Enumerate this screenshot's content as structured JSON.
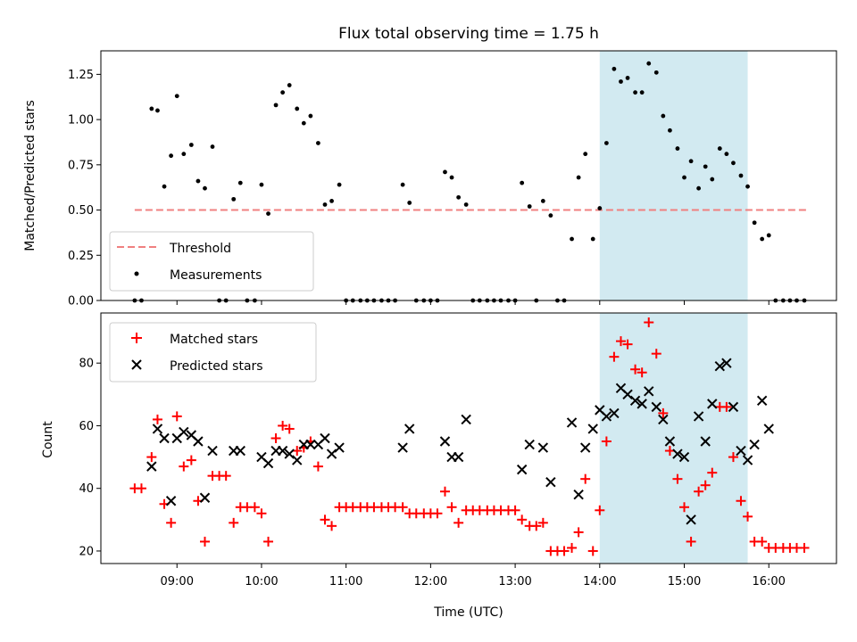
{
  "title": "Flux total observing time = 1.75 h",
  "colors": {
    "highlight": "#add8e6",
    "threshold": "#f08080",
    "measurements": "#000000",
    "matched": "#ff0000",
    "predicted": "#000000"
  },
  "chart_data": [
    {
      "type": "scatter",
      "ylabel": "Matched/Predicted stars",
      "xlim": [
        8.1,
        16.8
      ],
      "ylim": [
        0,
        1.38
      ],
      "yticks": [
        0.0,
        0.25,
        0.5,
        0.75,
        1.0,
        1.25
      ],
      "ytick_labels": [
        "0.00",
        "0.25",
        "0.50",
        "0.75",
        "1.00",
        "1.25"
      ],
      "highlight_span": [
        14.0,
        15.75
      ],
      "legend": {
        "placement": "lower-left",
        "entries": [
          "Threshold",
          "Measurements"
        ]
      },
      "threshold": {
        "name": "Threshold",
        "y": 0.5,
        "x_range": [
          8.5,
          16.45
        ]
      },
      "series": [
        {
          "name": "Measurements",
          "x": [
            8.5,
            8.58,
            8.7,
            8.77,
            8.85,
            8.93,
            9.0,
            9.08,
            9.17,
            9.25,
            9.33,
            9.42,
            9.5,
            9.58,
            9.67,
            9.75,
            9.83,
            9.92,
            10.0,
            10.08,
            10.17,
            10.25,
            10.33,
            10.42,
            10.5,
            10.58,
            10.67,
            10.75,
            10.83,
            10.92,
            11.0,
            11.08,
            11.17,
            11.25,
            11.33,
            11.42,
            11.5,
            11.58,
            11.67,
            11.75,
            11.83,
            11.92,
            12.0,
            12.08,
            12.17,
            12.25,
            12.33,
            12.42,
            12.5,
            12.58,
            12.67,
            12.75,
            12.83,
            12.92,
            13.0,
            13.08,
            13.17,
            13.25,
            13.33,
            13.42,
            13.5,
            13.58,
            13.67,
            13.75,
            13.83,
            13.92,
            14.0,
            14.08,
            14.17,
            14.25,
            14.33,
            14.42,
            14.5,
            14.58,
            14.67,
            14.75,
            14.83,
            14.92,
            15.0,
            15.08,
            15.17,
            15.25,
            15.33,
            15.42,
            15.5,
            15.58,
            15.67,
            15.75,
            15.83,
            15.92,
            16.0,
            16.08,
            16.17,
            16.25,
            16.33,
            16.42
          ],
          "y": [
            0.0,
            0.0,
            1.06,
            1.05,
            0.63,
            0.8,
            1.13,
            0.81,
            0.86,
            0.66,
            0.62,
            0.85,
            0.0,
            0.0,
            0.56,
            0.65,
            0.0,
            0.0,
            0.64,
            0.48,
            1.08,
            1.15,
            1.19,
            1.06,
            0.98,
            1.02,
            0.87,
            0.53,
            0.55,
            0.64,
            0.0,
            0.0,
            0.0,
            0.0,
            0.0,
            0.0,
            0.0,
            0.0,
            0.64,
            0.54,
            0.0,
            0.0,
            0.0,
            0.0,
            0.71,
            0.68,
            0.57,
            0.53,
            0.0,
            0.0,
            0.0,
            0.0,
            0.0,
            0.0,
            0.0,
            0.65,
            0.52,
            0.0,
            0.55,
            0.47,
            0.0,
            0.0,
            0.34,
            0.68,
            0.81,
            0.34,
            0.51,
            0.87,
            1.28,
            1.21,
            1.23,
            1.15,
            1.15,
            1.31,
            1.26,
            1.02,
            0.94,
            0.84,
            0.68,
            0.77,
            0.62,
            0.74,
            0.67,
            0.84,
            0.81,
            0.76,
            0.69,
            0.63,
            0.43,
            0.34,
            0.36,
            0.0,
            0.0,
            0.0,
            0.0,
            0.0
          ]
        }
      ]
    },
    {
      "type": "scatter",
      "xlabel": "Time (UTC)",
      "ylabel": "Count",
      "xlim": [
        8.1,
        16.8
      ],
      "ylim": [
        16,
        96
      ],
      "xticks": [
        9,
        10,
        11,
        12,
        13,
        14,
        15,
        16
      ],
      "xtick_labels": [
        "09:00",
        "10:00",
        "11:00",
        "12:00",
        "13:00",
        "14:00",
        "15:00",
        "16:00"
      ],
      "yticks": [
        20,
        40,
        60,
        80
      ],
      "ytick_labels": [
        "20",
        "40",
        "60",
        "80"
      ],
      "highlight_span": [
        14.0,
        15.75
      ],
      "legend": {
        "placement": "upper-left",
        "entries": [
          "Matched stars",
          "Predicted stars"
        ]
      },
      "series": [
        {
          "name": "Matched stars",
          "marker": "plus",
          "x": [
            8.5,
            8.58,
            8.7,
            8.77,
            8.85,
            8.93,
            9.0,
            9.08,
            9.17,
            9.25,
            9.33,
            9.42,
            9.5,
            9.58,
            9.67,
            9.75,
            9.83,
            9.92,
            10.0,
            10.08,
            10.17,
            10.25,
            10.33,
            10.42,
            10.5,
            10.58,
            10.67,
            10.75,
            10.83,
            10.92,
            11.0,
            11.08,
            11.17,
            11.25,
            11.33,
            11.42,
            11.5,
            11.58,
            11.67,
            11.75,
            11.83,
            11.92,
            12.0,
            12.08,
            12.17,
            12.25,
            12.33,
            12.42,
            12.5,
            12.58,
            12.67,
            12.75,
            12.83,
            12.92,
            13.0,
            13.08,
            13.17,
            13.25,
            13.33,
            13.42,
            13.5,
            13.58,
            13.67,
            13.75,
            13.83,
            13.92,
            14.0,
            14.08,
            14.17,
            14.25,
            14.33,
            14.42,
            14.5,
            14.58,
            14.67,
            14.75,
            14.83,
            14.92,
            15.0,
            15.08,
            15.17,
            15.25,
            15.33,
            15.42,
            15.5,
            15.58,
            15.67,
            15.75,
            15.83,
            15.92,
            16.0,
            16.08,
            16.17,
            16.25,
            16.33,
            16.42
          ],
          "y": [
            40,
            40,
            50,
            62,
            35,
            29,
            63,
            47,
            49,
            36,
            23,
            44,
            44,
            44,
            29,
            34,
            34,
            34,
            32,
            23,
            56,
            60,
            59,
            52,
            53,
            55,
            47,
            30,
            28,
            34,
            34,
            34,
            34,
            34,
            34,
            34,
            34,
            34,
            34,
            32,
            32,
            32,
            32,
            32,
            39,
            34,
            29,
            33,
            33,
            33,
            33,
            33,
            33,
            33,
            33,
            30,
            28,
            28,
            29,
            20,
            20,
            20,
            21,
            26,
            43,
            20,
            33,
            55,
            82,
            87,
            86,
            78,
            77,
            93,
            83,
            64,
            52,
            43,
            34,
            23,
            39,
            41,
            45,
            66,
            66,
            50,
            36,
            31,
            23,
            23,
            21,
            21,
            21,
            21,
            21,
            21
          ]
        },
        {
          "name": "Predicted stars",
          "marker": "x",
          "x": [
            8.7,
            8.77,
            8.85,
            8.93,
            9.0,
            9.08,
            9.17,
            9.25,
            9.33,
            9.42,
            9.67,
            9.75,
            10.0,
            10.08,
            10.17,
            10.25,
            10.33,
            10.42,
            10.5,
            10.58,
            10.67,
            10.75,
            10.83,
            10.92,
            11.67,
            11.75,
            12.17,
            12.25,
            12.33,
            12.42,
            13.08,
            13.17,
            13.33,
            13.42,
            13.67,
            13.75,
            13.83,
            13.92,
            14.0,
            14.08,
            14.17,
            14.25,
            14.33,
            14.42,
            14.5,
            14.58,
            14.67,
            14.75,
            14.83,
            14.92,
            15.0,
            15.08,
            15.17,
            15.25,
            15.33,
            15.42,
            15.5,
            15.58,
            15.67,
            15.75,
            15.83,
            15.92,
            16.0
          ],
          "y": [
            47,
            59,
            56,
            36,
            56,
            58,
            57,
            55,
            37,
            52,
            52,
            52,
            50,
            48,
            52,
            52,
            51,
            49,
            54,
            54,
            54,
            56,
            51,
            53,
            53,
            59,
            55,
            50,
            50,
            62,
            46,
            54,
            53,
            42,
            61,
            38,
            53,
            59,
            65,
            63,
            64,
            72,
            70,
            68,
            67,
            71,
            66,
            62,
            55,
            51,
            50,
            30,
            63,
            55,
            67,
            79,
            80,
            66,
            52,
            49,
            54,
            68,
            59
          ]
        }
      ]
    }
  ]
}
